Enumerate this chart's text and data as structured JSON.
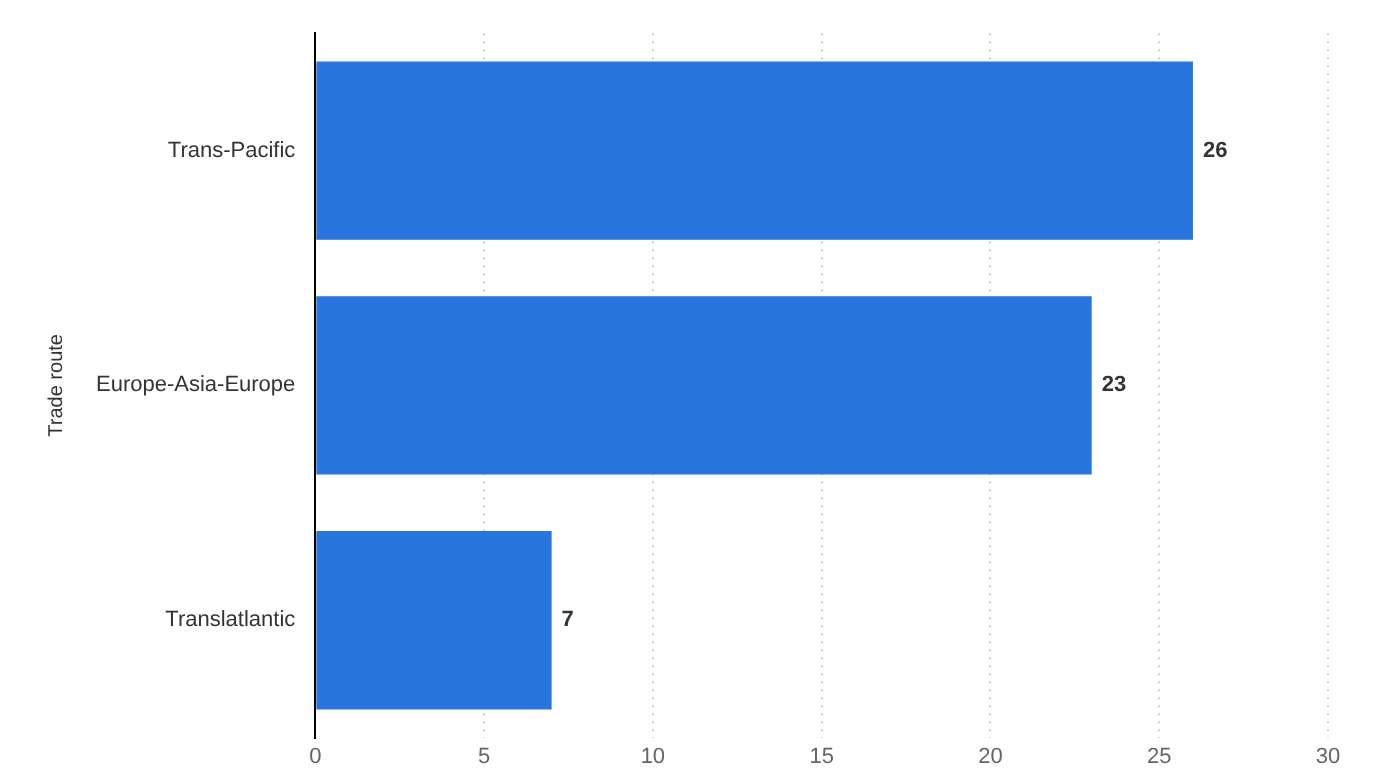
{
  "chart_data": {
    "type": "bar",
    "orientation": "horizontal",
    "ylabel": "Trade route",
    "categories": [
      "Trans-Pacific",
      "Europe-Asia-Europe",
      "Translatlantic"
    ],
    "values": [
      26,
      23,
      7
    ],
    "color": "#2876dd",
    "xlim": [
      0,
      30
    ],
    "xticks": [
      0,
      5,
      10,
      15,
      20,
      25,
      30
    ],
    "grid": "x",
    "data_labels": true
  }
}
